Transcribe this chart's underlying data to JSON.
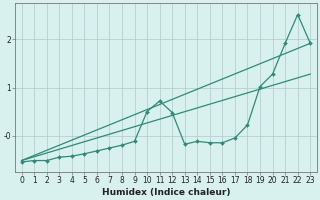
{
  "xlabel": "Humidex (Indice chaleur)",
  "x_values": [
    0,
    1,
    2,
    3,
    4,
    5,
    6,
    7,
    8,
    9,
    10,
    11,
    12,
    13,
    14,
    15,
    16,
    17,
    18,
    19,
    20,
    21,
    22,
    23
  ],
  "data_line": [
    -0.55,
    -0.52,
    -0.52,
    -0.45,
    -0.43,
    -0.38,
    -0.32,
    -0.26,
    -0.2,
    -0.12,
    0.5,
    0.72,
    0.48,
    -0.18,
    -0.12,
    -0.15,
    -0.15,
    -0.05,
    0.22,
    1.02,
    1.28,
    1.92,
    2.52,
    1.92
  ],
  "trend1_y0": -0.52,
  "trend1_y1": 1.92,
  "trend2_y0": -0.52,
  "trend2_y1": 1.28,
  "color": "#2E8B7A",
  "bg_color": "#D8F0EE",
  "grid_color": "#B0C8C8",
  "ylim": [
    -0.75,
    2.75
  ],
  "xlim": [
    -0.5,
    23.5
  ],
  "yticks": [
    0,
    1,
    2
  ],
  "ytick_labels": [
    "-0",
    "1",
    "2"
  ],
  "xticks": [
    0,
    1,
    2,
    3,
    4,
    5,
    6,
    7,
    8,
    9,
    10,
    11,
    12,
    13,
    14,
    15,
    16,
    17,
    18,
    19,
    20,
    21,
    22,
    23
  ],
  "marker_size": 2.0,
  "linewidth": 0.9,
  "xlabel_fontsize": 6.5,
  "tick_fontsize": 5.5
}
